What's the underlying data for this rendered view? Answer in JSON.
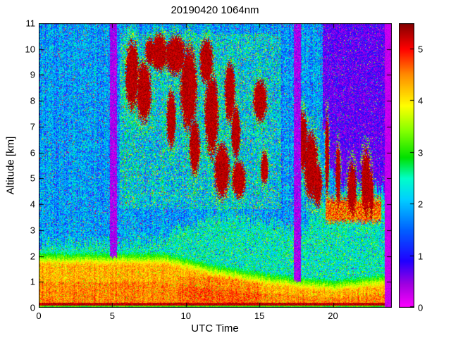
{
  "chart_data": {
    "type": "heatmap",
    "title": "20190420 1064nm",
    "xlabel": "UTC Time",
    "ylabel": "Altitude [km]",
    "xlim": [
      0,
      24
    ],
    "ylim": [
      0,
      11
    ],
    "x_ticks": [
      0,
      5,
      10,
      15,
      20
    ],
    "y_ticks": [
      0,
      1,
      2,
      3,
      4,
      5,
      6,
      7,
      8,
      9,
      10,
      11
    ],
    "grid": false,
    "colorbar": {
      "range": [
        0,
        5.5
      ],
      "ticks": [
        0,
        1,
        2,
        3,
        4,
        5
      ],
      "position": "right"
    },
    "colormap": [
      [
        0.0,
        "#ff00ff"
      ],
      [
        0.45,
        "#a000e0"
      ],
      [
        0.9,
        "#2000ff"
      ],
      [
        1.5,
        "#0060ff"
      ],
      [
        2.1,
        "#00d0ff"
      ],
      [
        2.5,
        "#00ffc8"
      ],
      [
        2.9,
        "#00e000"
      ],
      [
        3.4,
        "#80ff00"
      ],
      [
        3.9,
        "#ffff00"
      ],
      [
        4.5,
        "#ff8c00"
      ],
      [
        5.0,
        "#ff0000"
      ],
      [
        5.5,
        "#800000"
      ]
    ],
    "features": {
      "nodata_from_utc": 23.5,
      "off_stripes_utc": [
        [
          4.85,
          5.3
        ],
        [
          17.35,
          17.8
        ]
      ],
      "surface_return_km": 0.2,
      "boundary_layer_top_km": [
        [
          0,
          1.8
        ],
        [
          8.5,
          1.8
        ],
        [
          12,
          1.35
        ],
        [
          15,
          1.05
        ],
        [
          18,
          0.85
        ],
        [
          20,
          0.75
        ],
        [
          23.5,
          0.95
        ]
      ],
      "aerosol_haze_top_km": [
        [
          0,
          2.5
        ],
        [
          8,
          2.6
        ],
        [
          10,
          3.2
        ],
        [
          13,
          3.6
        ],
        [
          16,
          3.3
        ],
        [
          18,
          3.0
        ],
        [
          19.5,
          4.2
        ],
        [
          23.5,
          4.4
        ]
      ],
      "elevated_layer": {
        "utc": [
          19.5,
          23.3
        ],
        "km": [
          3.3,
          4.25
        ]
      },
      "clear_purple_above_km": [
        [
          19.3,
          7.3
        ],
        [
          19.9,
          5.3
        ],
        [
          20.6,
          4.7
        ],
        [
          23.5,
          4.6
        ]
      ],
      "clear_purple_from_utc": 19.3,
      "enhanced_speckle": {
        "utc": [
          5.5,
          16.5
        ],
        "km": [
          3.8,
          10.6
        ]
      },
      "clouds": [
        [
          6.35,
          9.0,
          0.45,
          1.3
        ],
        [
          7.15,
          8.35,
          0.5,
          1.15
        ],
        [
          7.55,
          9.9,
          0.3,
          0.5
        ],
        [
          8.2,
          9.85,
          0.55,
          0.7
        ],
        [
          9.3,
          9.75,
          0.7,
          0.75
        ],
        [
          9.0,
          7.3,
          0.3,
          1.1
        ],
        [
          10.2,
          8.5,
          0.55,
          1.6
        ],
        [
          10.6,
          6.2,
          0.35,
          1.05
        ],
        [
          11.4,
          9.5,
          0.45,
          0.85
        ],
        [
          11.75,
          7.5,
          0.45,
          1.6
        ],
        [
          12.45,
          5.3,
          0.5,
          1.05
        ],
        [
          13.0,
          8.35,
          0.35,
          1.15
        ],
        [
          13.4,
          6.8,
          0.3,
          1.0
        ],
        [
          13.6,
          4.95,
          0.45,
          0.7
        ],
        [
          15.05,
          8.0,
          0.45,
          0.8
        ],
        [
          15.35,
          5.4,
          0.25,
          0.6
        ],
        [
          17.95,
          6.4,
          0.3,
          1.15
        ],
        [
          18.5,
          5.5,
          0.45,
          1.3
        ],
        [
          18.95,
          4.75,
          0.3,
          0.85
        ],
        [
          19.6,
          5.9,
          0.13,
          1.5
        ],
        [
          20.35,
          5.1,
          0.16,
          1.1
        ],
        [
          21.3,
          4.6,
          0.3,
          0.95
        ],
        [
          22.25,
          4.85,
          0.3,
          1.2
        ],
        [
          22.6,
          4.4,
          0.15,
          0.9
        ]
      ]
    }
  }
}
